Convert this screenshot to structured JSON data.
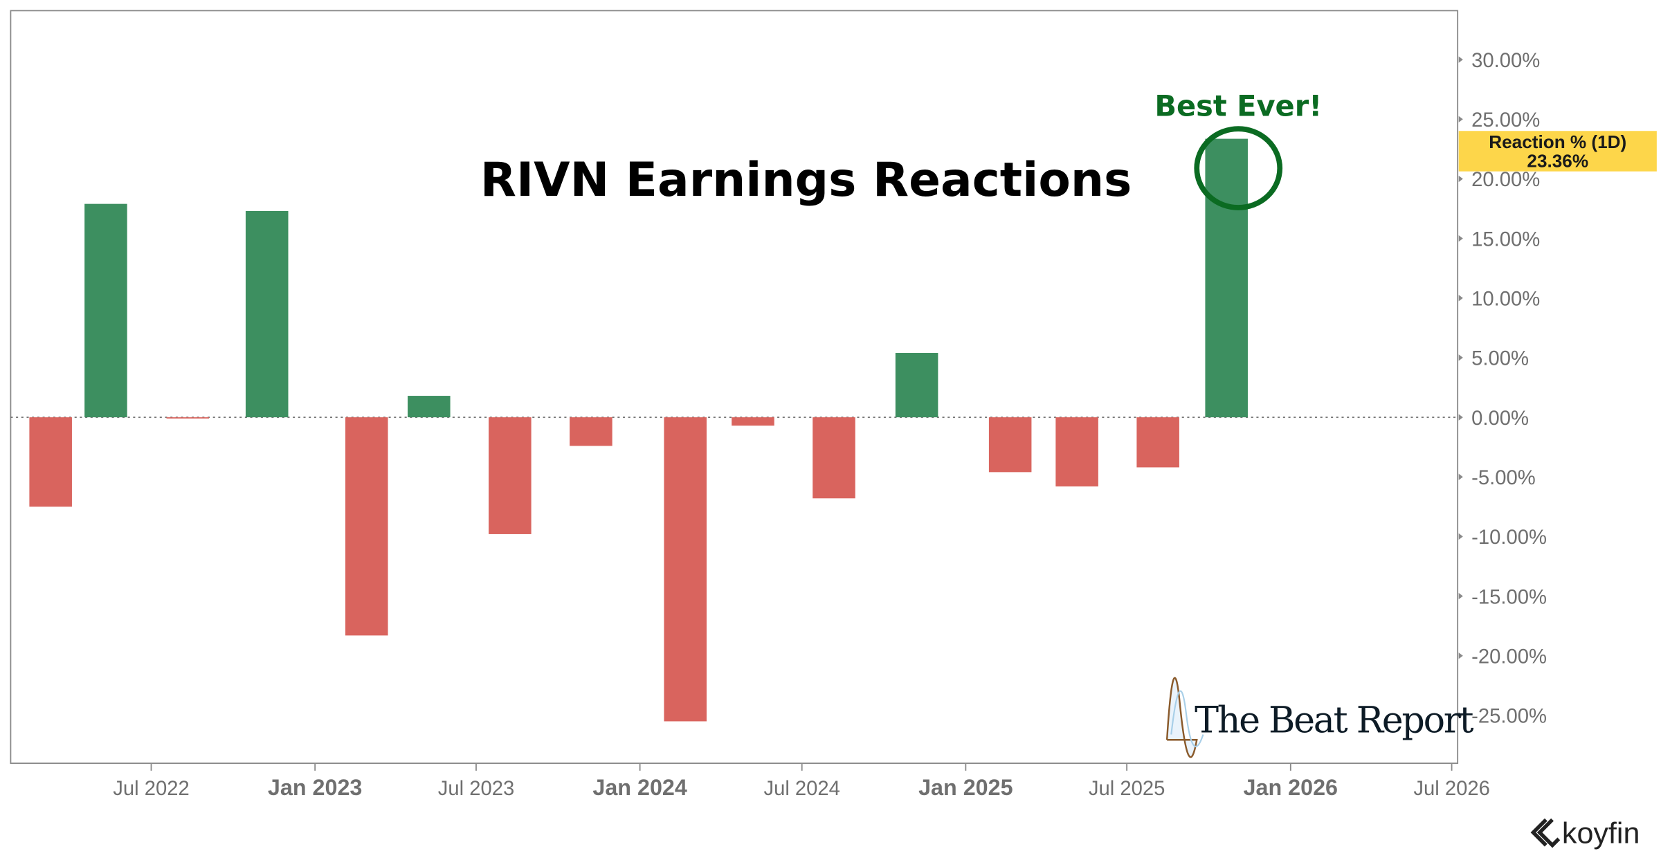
{
  "chart_data": {
    "type": "bar",
    "title": "RIVN Earnings Reactions",
    "series_label": "Reaction % (1D)",
    "last_value_label": "23.36%",
    "x": [
      "2022-03-10",
      "2022-05-11",
      "2022-08-11",
      "2022-11-08",
      "2023-02-28",
      "2023-05-09",
      "2023-08-08",
      "2023-11-07",
      "2024-02-21",
      "2024-05-07",
      "2024-08-06",
      "2024-11-07",
      "2025-02-20",
      "2025-05-06",
      "2025-08-05",
      "2025-10-21"
    ],
    "values": [
      -7.5,
      17.9,
      -0.1,
      17.3,
      -18.3,
      1.8,
      -9.8,
      -2.4,
      -25.5,
      -0.7,
      -6.8,
      5.4,
      -4.6,
      -5.8,
      -4.2,
      23.36
    ],
    "ylim": [
      -29,
      30
    ],
    "y_ticks": [
      30,
      25,
      20,
      15,
      10,
      5,
      0,
      -5,
      -10,
      -15,
      -20,
      -25
    ],
    "y_tick_labels": [
      "30.00%",
      "25.00%",
      "20.00%",
      "15.00%",
      "10.00%",
      "5.00%",
      "0.00%",
      "-5.00%",
      "-10.00%",
      "-15.00%",
      "-20.00%",
      "-25.00%"
    ],
    "x_ticks": [
      {
        "date": "2022-07-01",
        "label": "Jul 2022",
        "bold": false
      },
      {
        "date": "2023-01-01",
        "label": "Jan 2023",
        "bold": true
      },
      {
        "date": "2023-07-01",
        "label": "Jul 2023",
        "bold": false
      },
      {
        "date": "2024-01-01",
        "label": "Jan 2024",
        "bold": true
      },
      {
        "date": "2024-07-01",
        "label": "Jul 2024",
        "bold": false
      },
      {
        "date": "2025-01-01",
        "label": "Jan 2025",
        "bold": true
      },
      {
        "date": "2025-07-01",
        "label": "Jul 2025",
        "bold": false
      },
      {
        "date": "2026-01-01",
        "label": "Jan 2026",
        "bold": true
      },
      {
        "date": "2026-07-01",
        "label": "Jul 2026",
        "bold": false
      }
    ],
    "grid": false,
    "zero_line": "dotted",
    "annotation": "Best Ever!",
    "colors": {
      "positive": "#3d8f60",
      "negative": "#d9645e",
      "annotation": "#0b6b22",
      "tag_bg": "#fdd64a"
    }
  },
  "watermark": {
    "brand": "The Beat Report",
    "source": "koyfin"
  }
}
